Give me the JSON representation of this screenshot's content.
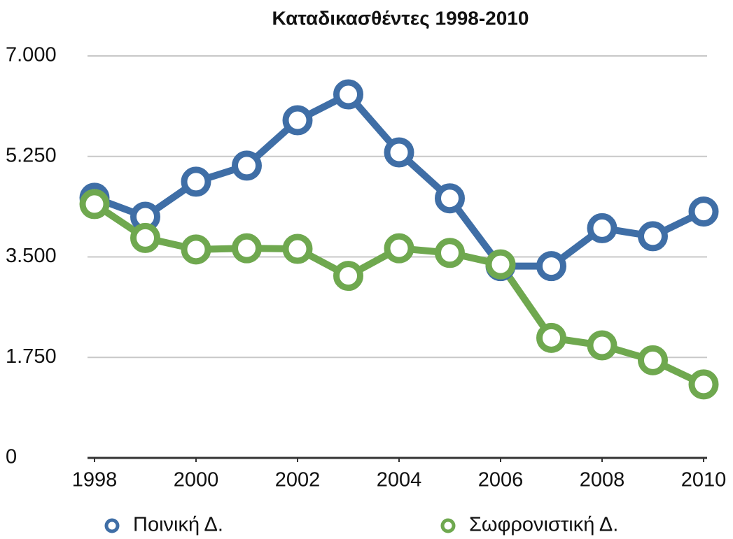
{
  "chart_data": {
    "type": "line",
    "title": "Καταδικασθέντες 1998-2010",
    "x": [
      1998,
      1999,
      2000,
      2001,
      2002,
      2003,
      2004,
      2005,
      2006,
      2007,
      2008,
      2009,
      2010
    ],
    "xlim": [
      1998,
      2010
    ],
    "xticks": [
      1998,
      2000,
      2002,
      2004,
      2006,
      2008,
      2010
    ],
    "ylim": [
      0,
      7000
    ],
    "yticks": [
      0,
      {
        "value": 1750,
        "label": "1.750"
      },
      {
        "value": 3500,
        "label": "3.500"
      },
      {
        "value": 5250,
        "label": "5.250"
      },
      {
        "value": 7000,
        "label": "7.000"
      }
    ],
    "grid": true,
    "legend": "bottom",
    "series": [
      {
        "name": "Ποινική Δ.",
        "color": "#3f6ea6",
        "values": [
          4530,
          4200,
          4810,
          5090,
          5880,
          6330,
          5320,
          4520,
          3340,
          3340,
          4000,
          3860,
          4290
        ]
      },
      {
        "name": "Σωφρονιστική Δ.",
        "color": "#6fa84f",
        "values": [
          4420,
          3830,
          3630,
          3650,
          3640,
          3170,
          3650,
          3570,
          3370,
          2090,
          1960,
          1700,
          1280
        ]
      }
    ]
  }
}
